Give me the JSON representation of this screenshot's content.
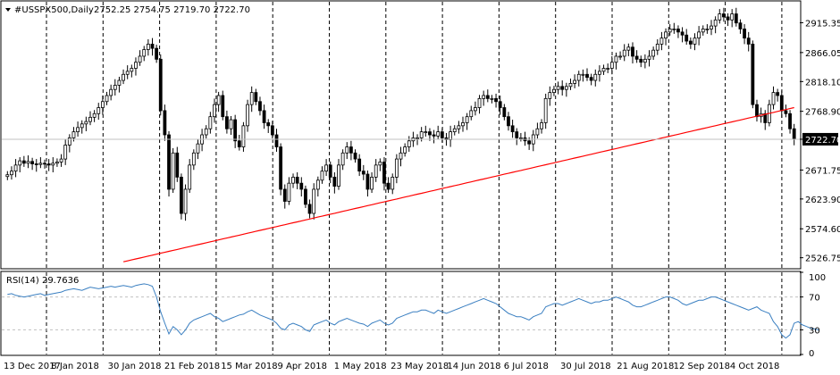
{
  "header": {
    "title": "#USSPX500,Daily",
    "ohlc": "2752.25 2754.75 2719.70 2722.70"
  },
  "chart_data": [
    {
      "type": "candlestick",
      "symbol": "#USSPX500",
      "timeframe": "Daily",
      "ylim": [
        2510,
        2950
      ],
      "y_ticks": [
        "2915.35",
        "2866.05",
        "2818.10",
        "2768.90",
        "2722.70",
        "2671.75",
        "2623.90",
        "2574.60",
        "2526.75"
      ],
      "current_price": "2722.70",
      "x_ticks": [
        "13 Dec 2017",
        "8 Jan 2018",
        "30 Jan 2018",
        "21 Feb 2018",
        "15 Mar 2018",
        "9 Apr 2018",
        "1 May 2018",
        "23 May 2018",
        "14 Jun 2018",
        "6 Jul 2018",
        "30 Jul 2018",
        "21 Aug 2018",
        "12 Sep 2018",
        "4 Oct 2018"
      ],
      "close": [
        2664,
        2670,
        2680,
        2687,
        2683,
        2686,
        2682,
        2681,
        2683,
        2682,
        2680,
        2683,
        2685,
        2690,
        2713,
        2725,
        2735,
        2742,
        2748,
        2752,
        2759,
        2765,
        2775,
        2785,
        2795,
        2805,
        2812,
        2820,
        2830,
        2835,
        2840,
        2850,
        2860,
        2871,
        2880,
        2873,
        2855,
        2770,
        2730,
        2640,
        2700,
        2660,
        2600,
        2640,
        2680,
        2700,
        2715,
        2730,
        2740,
        2760,
        2780,
        2795,
        2760,
        2740,
        2755,
        2720,
        2710,
        2745,
        2780,
        2800,
        2785,
        2770,
        2750,
        2745,
        2730,
        2710,
        2640,
        2620,
        2650,
        2660,
        2650,
        2640,
        2615,
        2600,
        2640,
        2655,
        2670,
        2680,
        2660,
        2645,
        2680,
        2700,
        2710,
        2700,
        2690,
        2670,
        2665,
        2640,
        2660,
        2680,
        2685,
        2650,
        2640,
        2660,
        2690,
        2700,
        2710,
        2720,
        2725,
        2725,
        2735,
        2735,
        2730,
        2728,
        2735,
        2725,
        2722,
        2735,
        2740,
        2745,
        2750,
        2760,
        2770,
        2775,
        2790,
        2795,
        2790,
        2790,
        2785,
        2775,
        2760,
        2745,
        2735,
        2725,
        2725,
        2720,
        2715,
        2730,
        2740,
        2750,
        2790,
        2800,
        2805,
        2810,
        2805,
        2810,
        2815,
        2820,
        2830,
        2830,
        2825,
        2820,
        2830,
        2835,
        2840,
        2840,
        2850,
        2860,
        2860,
        2870,
        2875,
        2860,
        2855,
        2850,
        2855,
        2860,
        2870,
        2880,
        2890,
        2900,
        2905,
        2905,
        2900,
        2895,
        2885,
        2880,
        2890,
        2900,
        2905,
        2905,
        2910,
        2920,
        2930,
        2925,
        2920,
        2930,
        2915,
        2905,
        2890,
        2880,
        2780,
        2760,
        2765,
        2750,
        2780,
        2800,
        2795,
        2770,
        2765,
        2740,
        2722.7
      ],
      "moving_average": {
        "period": "200",
        "color": "#ff0000",
        "start": 2520,
        "end": 2775
      },
      "colors": {
        "candle": "#000000",
        "grid": "#000000",
        "price_line": "#c0c0c0"
      }
    },
    {
      "type": "line",
      "title": "RSI(14) 29.7636",
      "ylim": [
        0,
        100
      ],
      "y_ticks": [
        "100",
        "70",
        "30",
        "0"
      ],
      "levels": [
        70,
        30
      ],
      "values": [
        73,
        74,
        72,
        71,
        70,
        71,
        72,
        73,
        74,
        72,
        73,
        74,
        75,
        76,
        78,
        79,
        80,
        79,
        78,
        80,
        82,
        81,
        80,
        81,
        82,
        83,
        82,
        83,
        84,
        83,
        82,
        84,
        85,
        86,
        85,
        83,
        70,
        52,
        38,
        25,
        34,
        30,
        24,
        30,
        38,
        42,
        44,
        46,
        48,
        50,
        46,
        44,
        40,
        42,
        44,
        46,
        48,
        49,
        52,
        54,
        51,
        48,
        46,
        44,
        42,
        38,
        32,
        30,
        36,
        38,
        36,
        34,
        30,
        28,
        36,
        38,
        40,
        42,
        38,
        36,
        40,
        42,
        44,
        42,
        40,
        38,
        37,
        34,
        38,
        40,
        42,
        38,
        36,
        38,
        44,
        46,
        48,
        50,
        52,
        52,
        54,
        54,
        52,
        50,
        54,
        52,
        50,
        52,
        54,
        56,
        58,
        60,
        62,
        64,
        66,
        68,
        66,
        64,
        62,
        58,
        54,
        50,
        48,
        46,
        46,
        44,
        42,
        46,
        48,
        50,
        58,
        60,
        62,
        62,
        60,
        62,
        64,
        66,
        68,
        66,
        64,
        62,
        64,
        64,
        66,
        66,
        68,
        70,
        68,
        66,
        64,
        60,
        58,
        58,
        60,
        62,
        64,
        66,
        68,
        70,
        70,
        68,
        66,
        62,
        60,
        62,
        64,
        66,
        66,
        68,
        70,
        70,
        68,
        66,
        64,
        62,
        60,
        58,
        56,
        54,
        56,
        58,
        54,
        52,
        50,
        40,
        34,
        24,
        20,
        24,
        38,
        40,
        36,
        34,
        32,
        31,
        29.76
      ],
      "colors": {
        "line": "#3a7fc1",
        "level": "#c0c0c0"
      }
    }
  ]
}
